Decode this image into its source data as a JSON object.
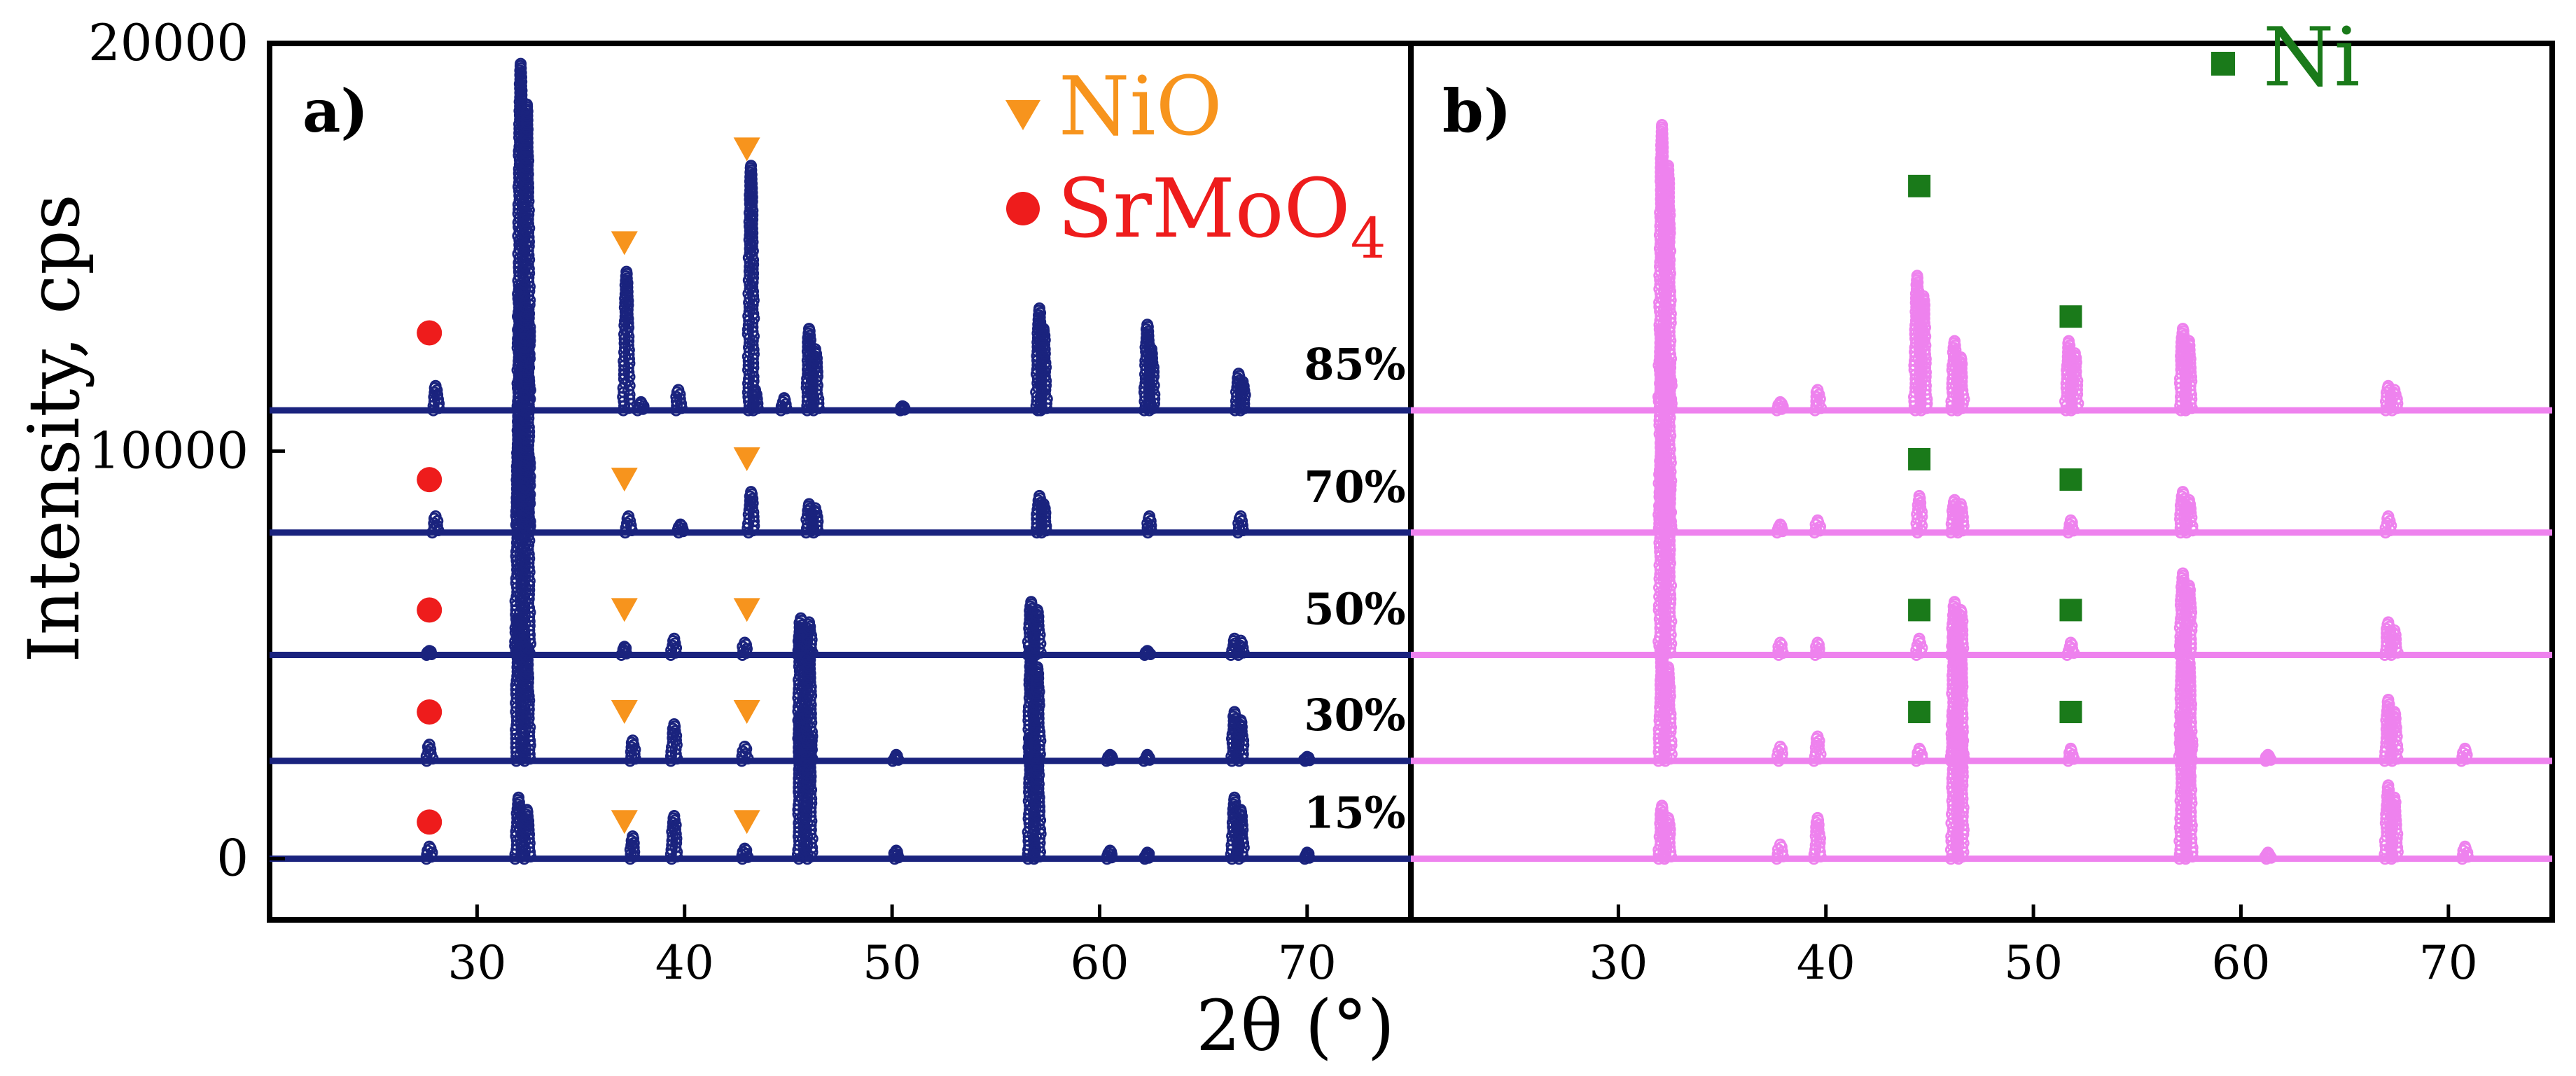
{
  "figure": {
    "ylabel": "Intensity, cps",
    "xlabel": "2θ (°)",
    "yticks": [
      {
        "value": 0,
        "label": "0"
      },
      {
        "value": 10000,
        "label": "10000"
      },
      {
        "value": 20000,
        "label": "20000"
      }
    ]
  },
  "colors": {
    "panel_a": "#1a237e",
    "panel_b": "#ee82ee",
    "nio": "#f7941d",
    "srmoo4": "#ee1c1c",
    "ni": "#1a7a1a"
  },
  "chart_data": [
    {
      "type": "line",
      "panel_label": "a)",
      "xlim": [
        20,
        75
      ],
      "ylim": [
        -1500,
        20000
      ],
      "xticks": [
        30,
        40,
        50,
        60,
        70
      ],
      "legend": [
        {
          "marker": "triangle-down",
          "label": "NiO",
          "color": "#f7941d"
        },
        {
          "marker": "circle",
          "label": "SrMoO",
          "subscript": "4",
          "color": "#ee1c1c"
        }
      ],
      "series": [
        {
          "label": "15%",
          "offset": 0,
          "peaks": [
            [
              27.7,
              300
            ],
            [
              32.0,
              1500
            ],
            [
              32.4,
              1200
            ],
            [
              37.5,
              550
            ],
            [
              39.5,
              1050
            ],
            [
              42.9,
              250
            ],
            [
              45.6,
              3500
            ],
            [
              46.0,
              3000
            ],
            [
              50.2,
              200
            ],
            [
              56.7,
              3000
            ],
            [
              57.0,
              2500
            ],
            [
              60.5,
              200
            ],
            [
              62.3,
              150
            ],
            [
              66.5,
              1500
            ],
            [
              66.8,
              1200
            ],
            [
              70.0,
              150
            ]
          ],
          "markers": [
            {
              "type": "circle",
              "x": 27.7,
              "y": 900
            },
            {
              "type": "triangle",
              "x": 37.1,
              "y": 900
            },
            {
              "type": "triangle",
              "x": 43.0,
              "y": 900
            }
          ]
        },
        {
          "label": "30%",
          "offset": 2400,
          "peaks": [
            [
              27.7,
              400
            ],
            [
              32.0,
              3500
            ],
            [
              32.4,
              2800
            ],
            [
              37.5,
              500
            ],
            [
              39.5,
              900
            ],
            [
              42.9,
              350
            ],
            [
              45.6,
              3200
            ],
            [
              46.0,
              2700
            ],
            [
              50.2,
              150
            ],
            [
              56.7,
              2700
            ],
            [
              57.0,
              2300
            ],
            [
              60.5,
              150
            ],
            [
              62.3,
              150
            ],
            [
              66.5,
              1200
            ],
            [
              66.8,
              1000
            ],
            [
              70.0,
              100
            ]
          ],
          "markers": [
            {
              "type": "circle",
              "x": 27.7,
              "y": 3600
            },
            {
              "type": "triangle",
              "x": 37.1,
              "y": 3600
            },
            {
              "type": "triangle",
              "x": 43.0,
              "y": 3600
            }
          ]
        },
        {
          "label": "50%",
          "offset": 5000,
          "peaks": [
            [
              27.7,
              100
            ],
            [
              32.0,
              6000
            ],
            [
              32.4,
              5000
            ],
            [
              37.1,
              200
            ],
            [
              39.5,
              400
            ],
            [
              42.9,
              300
            ],
            [
              45.6,
              900
            ],
            [
              46.0,
              800
            ],
            [
              56.7,
              1300
            ],
            [
              57.0,
              1100
            ],
            [
              62.3,
              100
            ],
            [
              66.5,
              400
            ],
            [
              66.8,
              350
            ]
          ],
          "markers": [
            {
              "type": "circle",
              "x": 27.7,
              "y": 6100
            },
            {
              "type": "triangle",
              "x": 37.1,
              "y": 6100
            },
            {
              "type": "triangle",
              "x": 43.0,
              "y": 6100
            }
          ]
        },
        {
          "label": "70%",
          "offset": 8000,
          "peaks": [
            [
              28.0,
              400
            ],
            [
              32.1,
              6000
            ],
            [
              32.4,
              5500
            ],
            [
              37.3,
              400
            ],
            [
              39.8,
              200
            ],
            [
              43.2,
              1000
            ],
            [
              46.0,
              700
            ],
            [
              46.3,
              600
            ],
            [
              57.1,
              900
            ],
            [
              57.3,
              700
            ],
            [
              62.4,
              400
            ],
            [
              66.8,
              400
            ]
          ],
          "markers": [
            {
              "type": "circle",
              "x": 27.7,
              "y": 9300
            },
            {
              "type": "triangle",
              "x": 37.1,
              "y": 9300
            },
            {
              "type": "triangle",
              "x": 43.0,
              "y": 9800
            }
          ]
        },
        {
          "label": "85%",
          "offset": 11000,
          "peaks": [
            [
              28.0,
              600
            ],
            [
              32.1,
              8500
            ],
            [
              32.4,
              7500
            ],
            [
              37.2,
              3400
            ],
            [
              37.9,
              200
            ],
            [
              39.7,
              500
            ],
            [
              43.2,
              6000
            ],
            [
              43.4,
              500
            ],
            [
              44.8,
              300
            ],
            [
              46.0,
              2000
            ],
            [
              46.3,
              1500
            ],
            [
              50.5,
              100
            ],
            [
              57.1,
              2500
            ],
            [
              57.3,
              2000
            ],
            [
              62.3,
              2100
            ],
            [
              62.5,
              1500
            ],
            [
              66.7,
              900
            ],
            [
              66.9,
              700
            ]
          ],
          "markers": [
            {
              "type": "circle",
              "x": 27.7,
              "y": 12900
            },
            {
              "type": "triangle",
              "x": 37.1,
              "y": 15100
            },
            {
              "type": "triangle",
              "x": 43.0,
              "y": 17400
            }
          ]
        }
      ]
    },
    {
      "type": "line",
      "panel_label": "b)",
      "xlim": [
        20,
        75
      ],
      "ylim": [
        -1500,
        20000
      ],
      "xticks": [
        30,
        40,
        50,
        60,
        70
      ],
      "legend": [
        {
          "marker": "square",
          "label": "Ni",
          "color": "#1a7a1a"
        }
      ],
      "series": [
        {
          "offset": 0,
          "peaks": [
            [
              32.1,
              1300
            ],
            [
              32.4,
              1000
            ],
            [
              37.8,
              350
            ],
            [
              39.6,
              1000
            ],
            [
              46.2,
              3500
            ],
            [
              46.5,
              3000
            ],
            [
              57.2,
              3500
            ],
            [
              57.5,
              3000
            ],
            [
              61.3,
              150
            ],
            [
              67.1,
              1800
            ],
            [
              67.4,
              1500
            ],
            [
              70.8,
              300
            ]
          ],
          "markers": []
        },
        {
          "offset": 2400,
          "peaks": [
            [
              32.1,
              2800
            ],
            [
              32.4,
              2300
            ],
            [
              37.8,
              350
            ],
            [
              39.6,
              600
            ],
            [
              44.5,
              300
            ],
            [
              46.2,
              3200
            ],
            [
              46.5,
              2700
            ],
            [
              51.8,
              300
            ],
            [
              57.2,
              3000
            ],
            [
              57.5,
              2500
            ],
            [
              61.3,
              150
            ],
            [
              67.1,
              1500
            ],
            [
              67.4,
              1200
            ],
            [
              70.8,
              300
            ]
          ],
          "markers": [
            {
              "type": "square",
              "x": 44.5,
              "y": 3600
            },
            {
              "type": "square",
              "x": 51.8,
              "y": 3600
            }
          ]
        },
        {
          "offset": 5000,
          "peaks": [
            [
              32.1,
              5500
            ],
            [
              32.4,
              4500
            ],
            [
              37.8,
              300
            ],
            [
              39.6,
              300
            ],
            [
              44.5,
              400
            ],
            [
              46.2,
              1300
            ],
            [
              46.5,
              1100
            ],
            [
              51.8,
              300
            ],
            [
              57.2,
              2000
            ],
            [
              57.5,
              1700
            ],
            [
              67.1,
              800
            ],
            [
              67.4,
              600
            ]
          ],
          "markers": [
            {
              "type": "square",
              "x": 44.5,
              "y": 6100
            },
            {
              "type": "square",
              "x": 51.8,
              "y": 6100
            }
          ]
        },
        {
          "offset": 8000,
          "peaks": [
            [
              32.1,
              5000
            ],
            [
              32.4,
              4200
            ],
            [
              37.8,
              200
            ],
            [
              39.6,
              300
            ],
            [
              44.5,
              900
            ],
            [
              46.2,
              800
            ],
            [
              46.5,
              700
            ],
            [
              51.8,
              300
            ],
            [
              57.2,
              1000
            ],
            [
              57.5,
              800
            ],
            [
              67.1,
              400
            ]
          ],
          "markers": [
            {
              "type": "square",
              "x": 44.5,
              "y": 9800
            },
            {
              "type": "square",
              "x": 51.8,
              "y": 9300
            }
          ]
        },
        {
          "offset": 11000,
          "peaks": [
            [
              32.1,
              7000
            ],
            [
              32.4,
              6000
            ],
            [
              37.8,
              200
            ],
            [
              39.6,
              500
            ],
            [
              44.4,
              3300
            ],
            [
              44.7,
              2800
            ],
            [
              46.2,
              1700
            ],
            [
              46.5,
              1300
            ],
            [
              51.7,
              1700
            ],
            [
              52.0,
              1400
            ],
            [
              57.2,
              2000
            ],
            [
              57.5,
              1700
            ],
            [
              67.1,
              600
            ],
            [
              67.4,
              500
            ]
          ],
          "markers": [
            {
              "type": "square",
              "x": 44.5,
              "y": 16500
            },
            {
              "type": "square",
              "x": 51.8,
              "y": 13300
            }
          ]
        }
      ]
    }
  ]
}
